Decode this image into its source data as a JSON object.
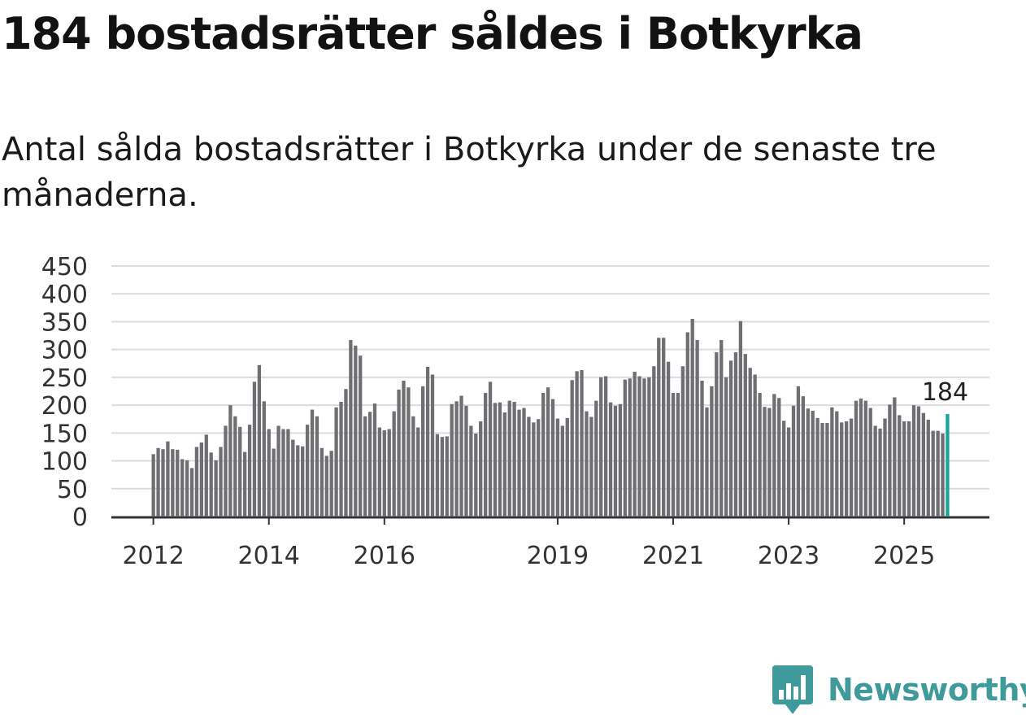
{
  "chart_data": {
    "type": "bar",
    "title": "184 bostadsrätter såldes i Botkyrka",
    "subtitle": "Antal sålda bostadsrätter i Botkyrka under de senaste tre månaderna.",
    "ylim": [
      0,
      450
    ],
    "yticks": [
      "0",
      "50",
      "100",
      "150",
      "200",
      "250",
      "300",
      "350",
      "400",
      "450"
    ],
    "xtick_labels": [
      "2012",
      "2014",
      "2016",
      "2019",
      "2021",
      "2023",
      "2025"
    ],
    "xtick_index": [
      0,
      24,
      48,
      84,
      108,
      132,
      156
    ],
    "grid": true,
    "bar_color": "#6f6f73",
    "highlight_color": "#1aa399",
    "last_value_label": "184",
    "values": [
      112,
      123,
      121,
      135,
      121,
      120,
      103,
      101,
      87,
      125,
      133,
      147,
      115,
      101,
      125,
      163,
      200,
      180,
      161,
      116,
      165,
      242,
      272,
      207,
      157,
      122,
      163,
      157,
      157,
      138,
      128,
      126,
      165,
      192,
      180,
      123,
      109,
      118,
      196,
      206,
      229,
      317,
      307,
      289,
      180,
      188,
      203,
      160,
      155,
      157,
      189,
      228,
      244,
      232,
      180,
      160,
      234,
      269,
      255,
      148,
      143,
      144,
      202,
      207,
      217,
      199,
      163,
      149,
      171,
      222,
      242,
      204,
      205,
      187,
      208,
      206,
      192,
      195,
      179,
      169,
      175,
      222,
      232,
      211,
      176,
      163,
      177,
      245,
      261,
      263,
      189,
      179,
      208,
      250,
      252,
      205,
      199,
      202,
      246,
      248,
      260,
      252,
      248,
      250,
      270,
      321,
      321,
      278,
      222,
      222,
      270,
      331,
      355,
      317,
      244,
      196,
      234,
      295,
      317,
      250,
      280,
      295,
      351,
      292,
      267,
      255,
      222,
      197,
      195,
      220,
      213,
      172,
      160,
      199,
      234,
      216,
      194,
      190,
      177,
      168,
      168,
      196,
      189,
      169,
      171,
      176,
      208,
      212,
      208,
      195,
      163,
      158,
      176,
      201,
      214,
      182,
      171,
      171,
      200,
      198,
      186,
      174,
      154,
      154,
      149,
      184
    ],
    "brand": {
      "name": "Newsworthy",
      "color": "#3e9a9b"
    }
  }
}
